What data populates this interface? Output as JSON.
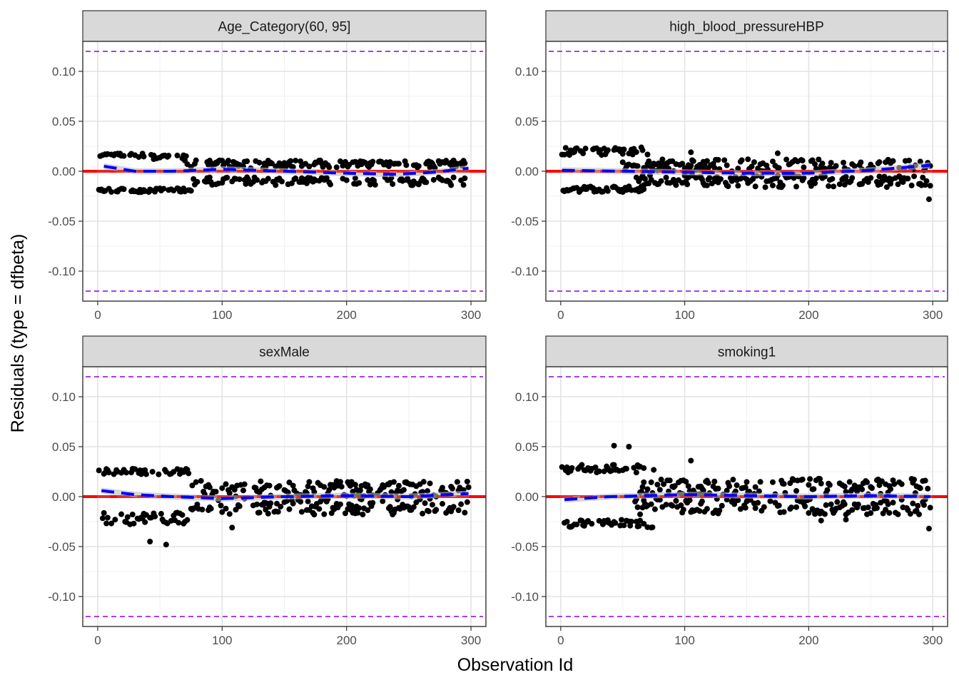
{
  "chart_data": {
    "type": "scatter",
    "facet_layout": "2x2",
    "xlabel": "Observation Id",
    "ylabel": "Residuals (type = dfbeta)",
    "xlim": [
      -12,
      312
    ],
    "ylim": [
      -0.13,
      0.13
    ],
    "x_ticks": [
      0,
      100,
      200,
      300
    ],
    "y_ticks": [
      -0.1,
      -0.05,
      0.0,
      0.05,
      0.1
    ],
    "y_tick_labels": [
      "-0.10",
      "-0.05",
      "0.00",
      "0.05",
      "0.10"
    ],
    "x_tick_labels": [
      "0",
      "100",
      "200",
      "300"
    ],
    "reference_lines": {
      "zero": 0.0,
      "upper": 0.12,
      "lower": -0.12
    },
    "colors": {
      "points": "#000000",
      "zero_line": "#ff0000",
      "threshold": "#a020f0",
      "smooth": "#0000ff",
      "band": "#bdbdbd",
      "strip": "#d9d9d9"
    },
    "grid": true,
    "legend": "none",
    "panels": [
      {
        "title": "Age_Category(60, 95]",
        "groups": [
          {
            "x_start": 1,
            "x_end": 45,
            "center": 0.016,
            "amp": 0.002
          },
          {
            "x_start": 1,
            "x_end": 75,
            "center": -0.019,
            "amp": 0.002
          },
          {
            "x_start": 45,
            "x_end": 75,
            "center": 0.014,
            "amp": 0.002
          },
          {
            "x_start": 70,
            "x_end": 298,
            "center": 0.007,
            "amp": 0.004
          },
          {
            "x_start": 75,
            "x_end": 298,
            "center": -0.01,
            "amp": 0.004
          }
        ],
        "smooth": [
          [
            5,
            0.005
          ],
          [
            30,
            0.0
          ],
          [
            60,
            0.0
          ],
          [
            100,
            0.002
          ],
          [
            150,
            0.0
          ],
          [
            200,
            -0.002
          ],
          [
            240,
            -0.003
          ],
          [
            270,
            -0.001
          ],
          [
            298,
            0.003
          ]
        ]
      },
      {
        "title": "high_blood_pressureHBP",
        "groups": [
          {
            "x_start": 1,
            "x_end": 70,
            "center": 0.02,
            "amp": 0.004
          },
          {
            "x_start": 1,
            "x_end": 70,
            "center": -0.018,
            "amp": 0.003
          },
          {
            "x_start": 50,
            "x_end": 298,
            "center": 0.006,
            "amp": 0.006
          },
          {
            "x_start": 60,
            "x_end": 298,
            "center": -0.01,
            "amp": 0.006
          }
        ],
        "outliers": [
          [
            297,
            -0.028
          ],
          [
            105,
            0.019
          ],
          [
            175,
            0.018
          ]
        ],
        "smooth": [
          [
            1,
            0.001
          ],
          [
            50,
            0.0
          ],
          [
            100,
            -0.001
          ],
          [
            150,
            -0.002
          ],
          [
            200,
            -0.002
          ],
          [
            250,
            0.001
          ],
          [
            298,
            0.006
          ]
        ]
      },
      {
        "title": "sexMale",
        "groups": [
          {
            "x_start": 1,
            "x_end": 75,
            "center": 0.025,
            "amp": 0.003
          },
          {
            "x_start": 1,
            "x_end": 75,
            "center": -0.022,
            "amp": 0.006
          },
          {
            "x_start": 75,
            "x_end": 298,
            "center": 0.008,
            "amp": 0.008
          },
          {
            "x_start": 75,
            "x_end": 298,
            "center": -0.01,
            "amp": 0.008
          }
        ],
        "outliers": [
          [
            42,
            -0.045
          ],
          [
            55,
            -0.048
          ],
          [
            108,
            -0.031
          ]
        ],
        "smooth": [
          [
            3,
            0.006
          ],
          [
            30,
            0.002
          ],
          [
            60,
            0.0
          ],
          [
            100,
            -0.002
          ],
          [
            150,
            0.0
          ],
          [
            200,
            0.001
          ],
          [
            250,
            0.0
          ],
          [
            298,
            0.003
          ]
        ]
      },
      {
        "title": "smoking1",
        "groups": [
          {
            "x_start": 1,
            "x_end": 75,
            "center": 0.028,
            "amp": 0.004
          },
          {
            "x_start": 1,
            "x_end": 75,
            "center": -0.027,
            "amp": 0.004
          },
          {
            "x_start": 60,
            "x_end": 298,
            "center": 0.01,
            "amp": 0.008
          },
          {
            "x_start": 60,
            "x_end": 298,
            "center": -0.01,
            "amp": 0.008
          }
        ],
        "outliers": [
          [
            43,
            0.051
          ],
          [
            55,
            0.05
          ],
          [
            105,
            0.036
          ],
          [
            297,
            -0.032
          ],
          [
            210,
            -0.024
          ],
          [
            230,
            -0.023
          ]
        ],
        "smooth": [
          [
            3,
            -0.003
          ],
          [
            40,
            0.0
          ],
          [
            100,
            0.002
          ],
          [
            150,
            0.001
          ],
          [
            200,
            0.0
          ],
          [
            250,
            0.001
          ],
          [
            298,
            0.0
          ]
        ]
      }
    ]
  }
}
